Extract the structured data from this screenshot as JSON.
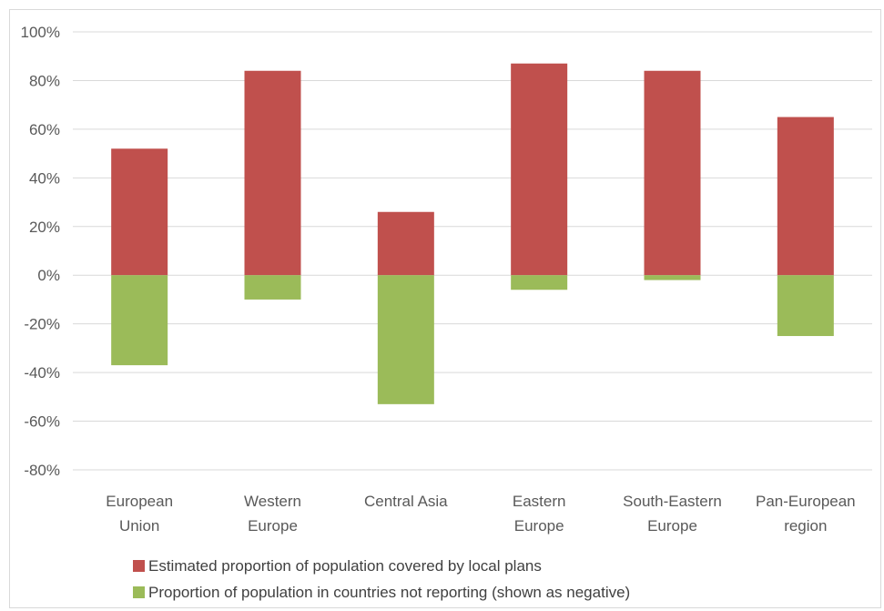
{
  "chart_data": {
    "type": "bar",
    "categories": [
      [
        "European",
        "Union"
      ],
      [
        "Western",
        "Europe"
      ],
      [
        "Central Asia"
      ],
      [
        "Eastern",
        "Europe"
      ],
      [
        "South-Eastern",
        "Europe"
      ],
      [
        "Pan-European",
        "region"
      ]
    ],
    "series": [
      {
        "name": "Estimated proportion of population covered by local plans",
        "color": "#c0504d",
        "values": [
          52,
          84,
          26,
          87,
          84,
          65
        ]
      },
      {
        "name": "Proportion of population in countries not reporting (shown as negative)",
        "color": "#9bbb59",
        "values": [
          -37,
          -10,
          -53,
          -6,
          -2,
          -25
        ]
      }
    ],
    "ylim": [
      -80,
      100
    ],
    "yticks": [
      100,
      80,
      60,
      40,
      20,
      0,
      -20,
      -40,
      -60,
      -80
    ],
    "ytick_labels": [
      "100%",
      "80%",
      "60%",
      "40%",
      "20%",
      "0%",
      "-20%",
      "-40%",
      "-60%",
      "-80%"
    ],
    "grid": true,
    "legend": "bottom",
    "stacked": true
  }
}
